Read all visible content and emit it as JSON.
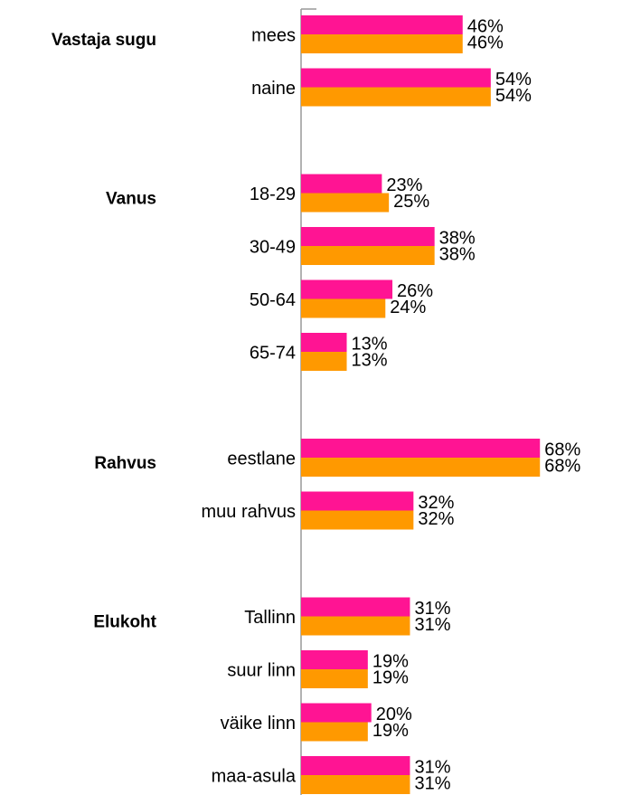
{
  "chart_data": {
    "type": "bar",
    "orientation": "horizontal",
    "categories": [
      "mees",
      "naine",
      null,
      "18-29",
      "30-49",
      "50-64",
      "65-74",
      null,
      "eestlane",
      "muu rahvus",
      null,
      "Tallinn",
      "suur linn",
      "väike linn",
      "maa-asula"
    ],
    "group_labels": [
      "Vastaja sugu",
      null,
      null,
      "Vanus",
      null,
      null,
      null,
      null,
      "Rahvus",
      null,
      null,
      "Elukoht",
      null,
      null,
      null
    ],
    "xlim": [
      0,
      70
    ],
    "series": [
      {
        "color": "#ff1493",
        "values": [
          46,
          54,
          null,
          23,
          38,
          26,
          13,
          null,
          68,
          32,
          null,
          31,
          19,
          20,
          31
        ],
        "value_labels": [
          "46%",
          "54%",
          null,
          "23%",
          "38%",
          "26%",
          "13%",
          null,
          "68%",
          "32%",
          null,
          "31%",
          "19%",
          "20%",
          "31%"
        ]
      },
      {
        "color": "#ff9900",
        "values": [
          46,
          54,
          null,
          25,
          38,
          24,
          13,
          null,
          68,
          32,
          null,
          31,
          19,
          19,
          31
        ],
        "value_labels": [
          "46%",
          "54%",
          null,
          "25%",
          "38%",
          "24%",
          "13%",
          null,
          "68%",
          "32%",
          null,
          "31%",
          "19%",
          "19%",
          "31%"
        ]
      }
    ]
  }
}
